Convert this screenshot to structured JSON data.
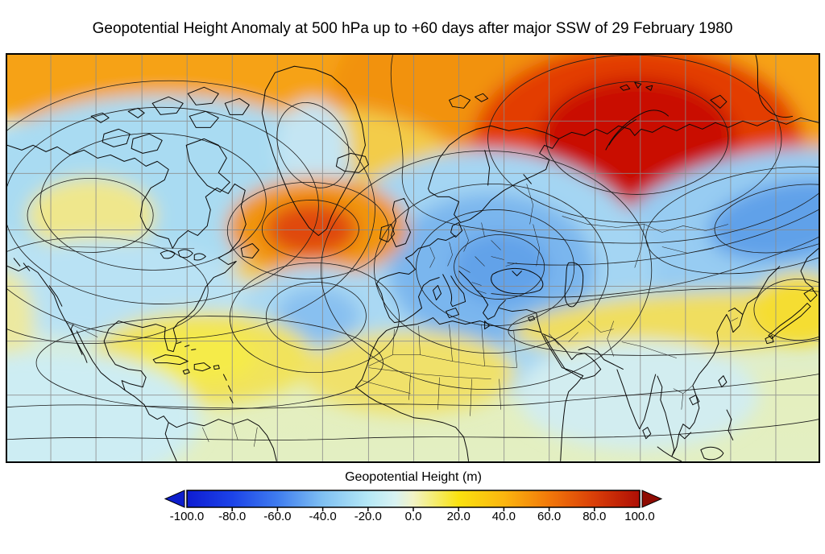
{
  "title": "Geopotential Height Anomaly at 500 hPa up to +60 days after major SSW of 29 February 1980",
  "colorbar": {
    "label": "Geopotential Height (m)",
    "ticks": [
      "-100.0",
      "-80.0",
      "-60.0",
      "-40.0",
      "-20.0",
      "0.0",
      "20.0",
      "40.0",
      "60.0",
      "80.0",
      "100.0"
    ],
    "min": -100.0,
    "max": 100.0,
    "left_arrow_color": "#0D1ECC",
    "right_arrow_color": "#8F0B02"
  },
  "colors": {
    "negative_extreme": "#0E1CD2",
    "negative_mid": "#3F7CEF",
    "near_zero": "#F2F3C6",
    "positive_mid": "#FBB60F",
    "positive_extreme": "#AE0E05",
    "grid_line": "#8a8a8a",
    "coastline": "#0a0a0a",
    "contour_line": "#1a1a1a"
  },
  "chart_data": {
    "type": "heatmap",
    "title": "Geopotential Height Anomaly at 500 hPa up to +60 days after major SSW of 29 February 1980",
    "colorbar_label": "Geopotential Height (m)",
    "units": "m",
    "colorbar_range": [
      -100.0,
      100.0
    ],
    "colorbar_ticks": [
      -100.0,
      -80.0,
      -60.0,
      -40.0,
      -20.0,
      0.0,
      20.0,
      40.0,
      60.0,
      80.0,
      100.0
    ],
    "colormap": "blue-white-yellow-red diverging, with out-of-range arrow caps",
    "grid": "gray graticule, meridians evenly spaced, parallels widening toward equator",
    "region": "Northern Hemisphere: North America, North Atlantic, Europe, Africa, Asia",
    "contour_interval_m": 20,
    "anomaly_centers": [
      {
        "region": "Barents-Kara Seas / Arctic Russia",
        "sign": "positive",
        "approx_value_m": 100
      },
      {
        "region": "Entire high-Arctic top edge band",
        "sign": "positive",
        "approx_value_m": 50
      },
      {
        "region": "North Atlantic south of Greenland",
        "sign": "positive",
        "approx_value_m": 70
      },
      {
        "region": "Central/Southern Europe and Mediterranean",
        "sign": "negative",
        "approx_value_m": -60
      },
      {
        "region": "Central Asia",
        "sign": "negative",
        "approx_value_m": -55
      },
      {
        "region": "Canadian Arctic Archipelago",
        "sign": "negative",
        "approx_value_m": -30
      },
      {
        "region": "Mid-Atlantic subtropical",
        "sign": "negative",
        "approx_value_m": -40
      },
      {
        "region": "US West Coast offshore",
        "sign": "positive",
        "approx_value_m": 15
      },
      {
        "region": "Caribbean / Gulf of Mexico",
        "sign": "positive",
        "approx_value_m": 25
      },
      {
        "region": "Sahara / West Africa",
        "sign": "positive",
        "approx_value_m": 20
      },
      {
        "region": "Middle East to East China / Japan band",
        "sign": "positive",
        "approx_value_m": 25
      }
    ]
  }
}
